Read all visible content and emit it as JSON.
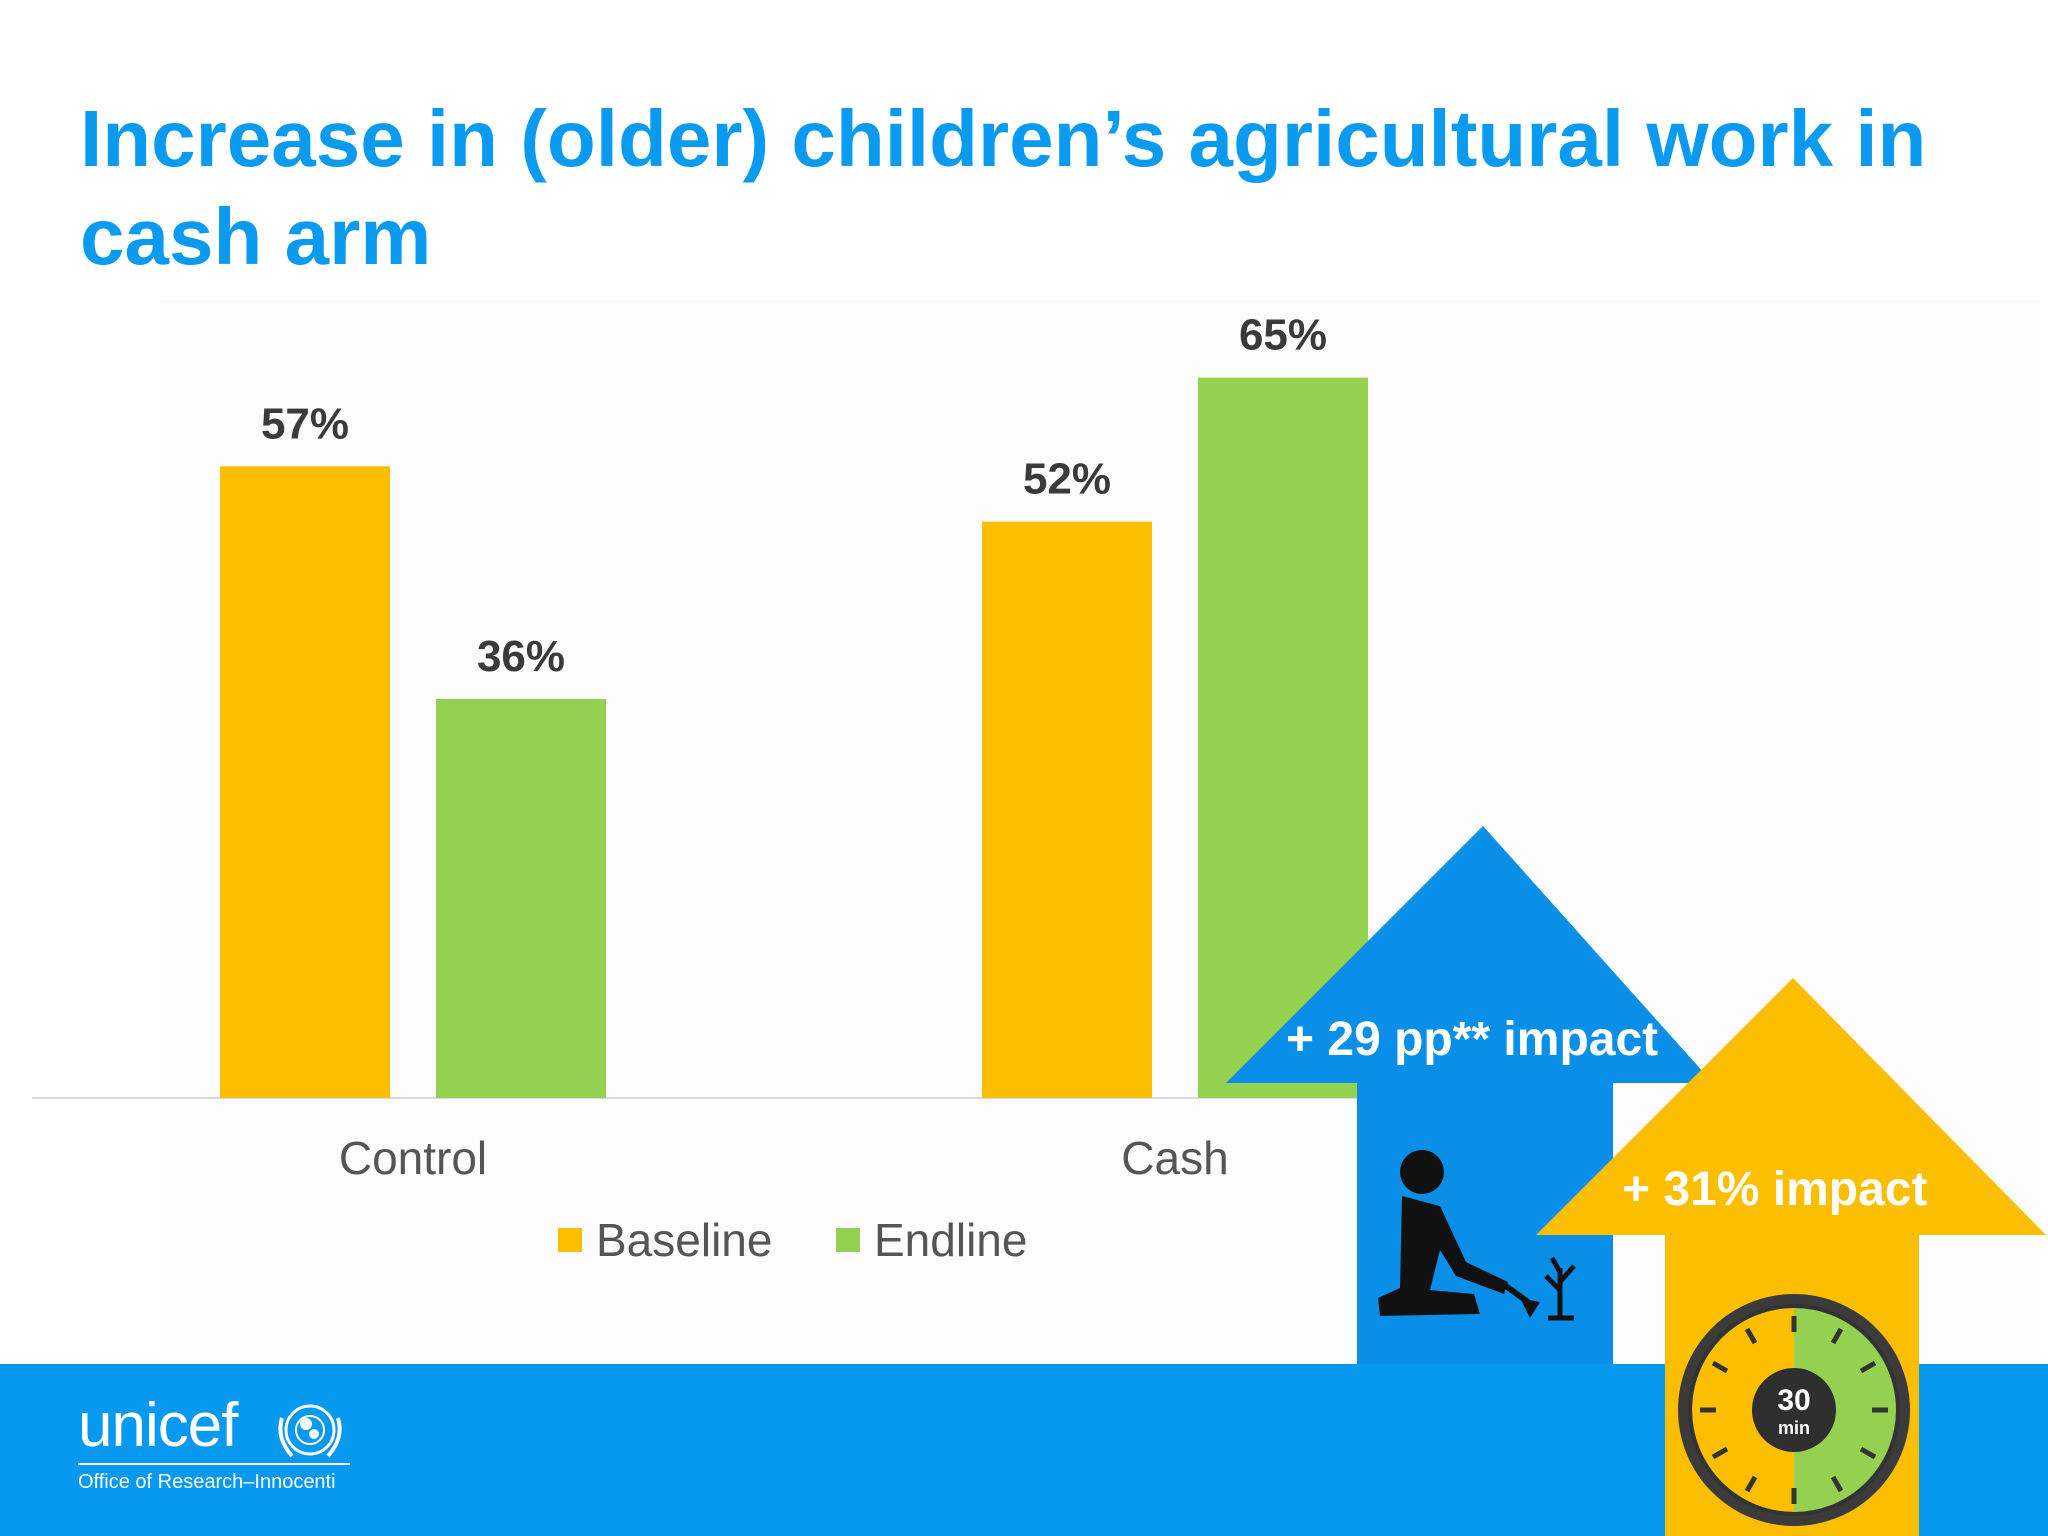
{
  "title": "Increase in (older) children’s agricultural work in cash arm",
  "chart_data": {
    "type": "bar",
    "categories": [
      "Control",
      "Cash"
    ],
    "series": [
      {
        "name": "Baseline",
        "values": [
          57,
          52
        ],
        "labels": [
          "57%",
          "52%"
        ],
        "color": "#fcbe00"
      },
      {
        "name": "Endline",
        "values": [
          36,
          65
        ],
        "labels": [
          "36%",
          "65%"
        ],
        "color": "#95d150"
      }
    ],
    "ylim": [
      0,
      72
    ],
    "grid": false,
    "legend_position": "bottom"
  },
  "callouts": {
    "blue_arrow": {
      "text": "+ 29 pp** impact",
      "color": "#0a8fe8"
    },
    "yellow_arrow": {
      "text": "+ 31% impact",
      "color": "#fcbe00"
    },
    "timer_text_top": "30",
    "timer_text_bottom": "min"
  },
  "logo": {
    "wordmark": "unicef",
    "subtitle": "Office of Research–Innocenti"
  },
  "icons": [
    "kneeling-farmer-icon",
    "stopwatch-icon",
    "un-emblem-icon"
  ]
}
